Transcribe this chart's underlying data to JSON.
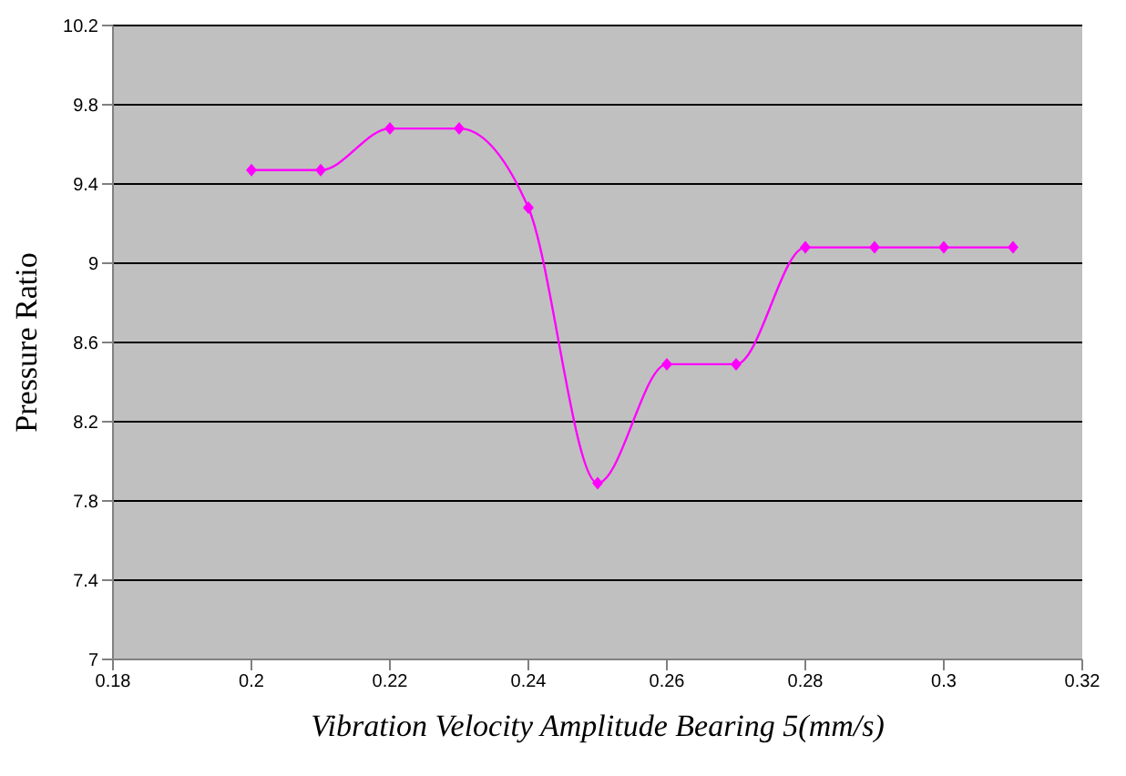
{
  "chart_data": {
    "type": "line",
    "xlabel": "Vibration Velocity Amplitude Bearing 5(mm/s)",
    "ylabel": "Pressure Ratio",
    "x": [
      0.2,
      0.21,
      0.22,
      0.23,
      0.24,
      0.25,
      0.26,
      0.27,
      0.28,
      0.29,
      0.3,
      0.31
    ],
    "series": [
      {
        "color": "#ff00ff",
        "values": [
          9.47,
          9.47,
          9.68,
          9.68,
          9.28,
          7.89,
          8.49,
          8.49,
          9.08,
          9.08,
          9.08,
          9.08
        ]
      }
    ],
    "xlim": [
      0.18,
      0.32
    ],
    "xticks": [
      0.18,
      0.2,
      0.22,
      0.24,
      0.26,
      0.28,
      0.3,
      0.32
    ],
    "ylim": [
      7,
      10.2
    ],
    "yticks": [
      7,
      7.4,
      7.8,
      8.2,
      8.6,
      9,
      9.4,
      9.8,
      10.2
    ],
    "grid": "y",
    "legend": false,
    "marker": "diamond",
    "line_style": "solid"
  }
}
